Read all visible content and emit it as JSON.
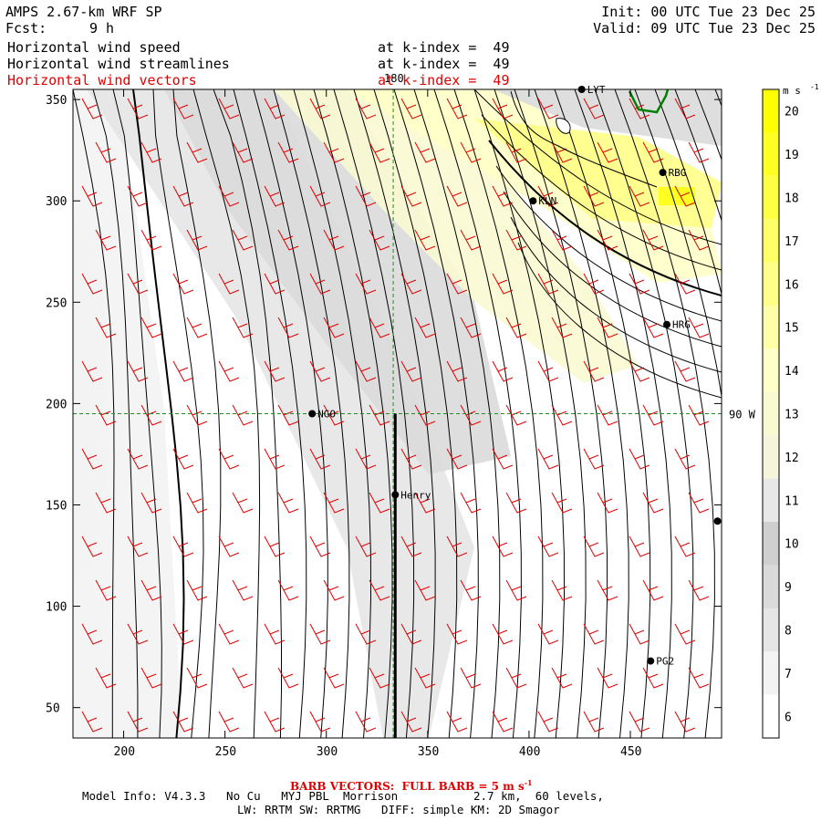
{
  "header": {
    "model_title": "AMPS 2.67-km WRF SP",
    "forecast_label": "Fcst:",
    "forecast_value": "9 h",
    "init": "Init: 00 UTC Tue 23 Dec 25",
    "valid": "Valid: 09 UTC Tue 23 Dec 25",
    "fields": [
      {
        "name": "Horizontal wind speed",
        "level": "at k-index =  49",
        "color": "#000000"
      },
      {
        "name": "Horizontal wind streamlines",
        "level": "at k-index =  49",
        "color": "#000000"
      },
      {
        "name": "Horizontal wind vectors",
        "level": "at k-index =  49",
        "color": "#e00000"
      }
    ]
  },
  "footer": {
    "barb_note": "BARB VECTORS:  FULL BARB = 5 m s",
    "barb_unit_sup": "-1",
    "model_info": "Model Info: V4.3.3   No Cu   MYJ PBL  Morrison           2.7 km,  60 levels,",
    "physics": "LW: RRTM SW: RRTMG   DIFF: simple KM: 2D Smagor"
  },
  "chart_data": {
    "type": "heatmap",
    "description_fields": [
      "wind speed shading",
      "streamlines",
      "wind barbs"
    ],
    "xlim": [
      175,
      495
    ],
    "ylim": [
      35,
      355
    ],
    "x_ticks": [
      200,
      250,
      300,
      350,
      400,
      450
    ],
    "y_ticks": [
      50,
      100,
      150,
      200,
      250,
      300,
      350
    ],
    "grid_lines": {
      "meridian_x": 333,
      "meridian_label": "180",
      "parallel_y": 195,
      "parallel_label": "90 W"
    },
    "colorbar": {
      "unit": "m s",
      "unit_sup": "-1",
      "levels": [
        6,
        7,
        8,
        9,
        10,
        11,
        12,
        13,
        14,
        15,
        16,
        17,
        18,
        19,
        20
      ],
      "colors": [
        "#ffffff",
        "#f3f3f3",
        "#e6e6e6",
        "#dadada",
        "#cfcfcf",
        "#e8e8e8",
        "#f5f5dc",
        "#fafad2",
        "#ffffc8",
        "#ffffaa",
        "#ffff88",
        "#ffff66",
        "#ffff44",
        "#ffff22",
        "#ffff00"
      ]
    },
    "stations": [
      {
        "name": "LYT",
        "x": 426,
        "y": 355
      },
      {
        "name": "RBG",
        "x": 466,
        "y": 314
      },
      {
        "name": "KLN",
        "x": 402,
        "y": 300
      },
      {
        "name": "HRG",
        "x": 468,
        "y": 239
      },
      {
        "name": "NGO",
        "x": 293,
        "y": 195
      },
      {
        "name": "Henry",
        "x": 334,
        "y": 155
      },
      {
        "name": "PG2",
        "x": 460,
        "y": 73
      },
      {
        "name": "",
        "x": 493,
        "y": 142
      }
    ],
    "thick_line": {
      "x": 334,
      "y_from": 35,
      "y_to": 195
    },
    "coast_color": "#008000",
    "streamline_color": "#000000",
    "barb_color": "#e00000"
  }
}
